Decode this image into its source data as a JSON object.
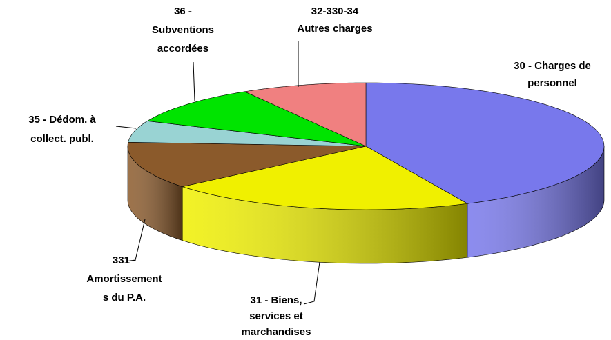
{
  "chart_data": {
    "type": "pie3d",
    "categories": [
      "30 - Charges de\npersonnel",
      "31 - Biens,\nservices et\nmarchandises",
      "331 -\nAmortissement\ns du P.A.",
      "35 - Dédom. à\ncollect. publ.",
      "36 -\nSubventions\naccordées",
      "32-330-34\nAutres charges"
    ],
    "values": [
      43,
      21,
      12,
      5.5,
      10,
      8.5
    ],
    "colors": [
      "#7878ec",
      "#f0f000",
      "#8b5a2b",
      "#99d3d3",
      "#00e400",
      "#f08080"
    ]
  }
}
